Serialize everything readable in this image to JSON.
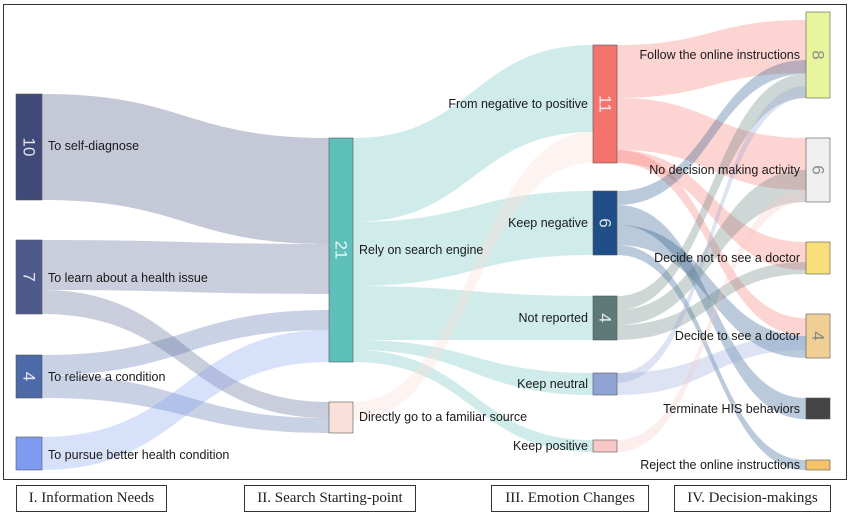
{
  "stages": [
    "I. Information Needs",
    "II. Search Starting-point",
    "III. Emotion Changes",
    "IV. Decision-makings"
  ],
  "nodes": {
    "n_selfdiag": {
      "label": "To self-diagnose",
      "count": "10",
      "color": "#3f4a78"
    },
    "n_learn": {
      "label": "To learn about a health issue",
      "count": "7",
      "color": "#4f5a8c"
    },
    "n_relieve": {
      "label": "To relieve a condition",
      "count": "4",
      "color": "#4c6aa8"
    },
    "n_pursue": {
      "label": "To pursue better health condition",
      "count": "",
      "color": "#7f9bef"
    },
    "n_search": {
      "label": "Rely on search engine",
      "count": "21",
      "color": "#5fbfba"
    },
    "n_familiar": {
      "label": "Directly go to a familiar source",
      "count": "",
      "color": "#f9e0d8"
    },
    "n_negpos": {
      "label": "From negative to positive",
      "count": "11",
      "color": "#f4746d"
    },
    "n_keepneg": {
      "label": "Keep negative",
      "count": "6",
      "color": "#1f4f86"
    },
    "n_notrep": {
      "label": "Not reported",
      "count": "4",
      "color": "#5d7a78"
    },
    "n_keepneu": {
      "label": "Keep neutral",
      "count": "",
      "color": "#8fa3d4"
    },
    "n_keeppos": {
      "label": "Keep positive",
      "count": "",
      "color": "#f8c8c8"
    },
    "n_follow": {
      "label": "Follow the online instructions",
      "count": "8",
      "color": "#e9f59e"
    },
    "n_nodec": {
      "label": "No decision making activity",
      "count": "6",
      "color": "#efefef"
    },
    "n_notdoc": {
      "label": "Decide not to see a doctor",
      "count": "",
      "color": "#f8df7a"
    },
    "n_doc": {
      "label": "Decide to see a doctor",
      "count": "4",
      "color": "#efcf94"
    },
    "n_term": {
      "label": "Terminate HIS behaviors",
      "count": "",
      "color": "#444444"
    },
    "n_reject": {
      "label": "Reject the online instructions",
      "count": "",
      "color": "#f5c26a"
    }
  }
}
